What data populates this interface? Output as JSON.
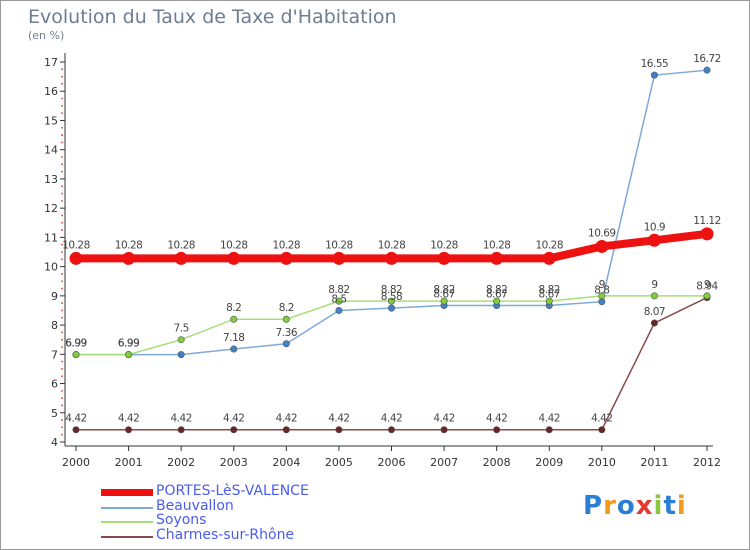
{
  "header": {
    "title": "Evolution du Taux de Taxe d'Habitation",
    "subtitle": "(en %)"
  },
  "logo": {
    "text": "Proxiti",
    "colors": [
      "#2a7fd4",
      "#f29a1a",
      "#2a7fd4",
      "#e23b2e",
      "#8cc63f",
      "#2a7fd4",
      "#f29a1a"
    ]
  },
  "chart_data": {
    "type": "line",
    "x": [
      2000,
      2001,
      2002,
      2003,
      2004,
      2005,
      2006,
      2007,
      2008,
      2009,
      2010,
      2011,
      2012
    ],
    "ylim": [
      4,
      17
    ],
    "yticks": [
      4,
      5,
      6,
      7,
      8,
      9,
      10,
      11,
      12,
      13,
      14,
      15,
      16,
      17
    ],
    "grid": false,
    "legend_position": "bottom-left",
    "series": [
      {
        "name": "PORTES-LèS-VALENCE",
        "color": "#ee1111",
        "emphasis": true,
        "values": [
          10.28,
          10.28,
          10.28,
          10.28,
          10.28,
          10.28,
          10.28,
          10.28,
          10.28,
          10.28,
          10.69,
          10.9,
          11.12
        ],
        "labels": [
          "10.28",
          "10.28",
          "10.28",
          "10.28",
          "10.28",
          "10.28",
          "10.28",
          "10.28",
          "10.28",
          "10.28",
          "10.69",
          "10.9",
          "11.12"
        ]
      },
      {
        "name": "Beauvallon",
        "color": "#7fa9d6",
        "marker": "#3f82c8",
        "values": [
          6.99,
          6.99,
          6.99,
          7.18,
          7.36,
          8.5,
          8.58,
          8.67,
          8.67,
          8.67,
          8.8,
          16.55,
          16.72
        ],
        "labels": [
          "6.99",
          "6.99",
          "",
          "7.18",
          "7.36",
          "8.5",
          "8.58",
          "8.67",
          "8.67",
          "8.67",
          "8.8",
          "16.55",
          "16.72"
        ]
      },
      {
        "name": "Soyons",
        "color": "#a6df7a",
        "marker": "#7fcf3c",
        "values": [
          6.99,
          6.99,
          7.5,
          8.2,
          8.2,
          8.82,
          8.82,
          8.82,
          8.82,
          8.82,
          9,
          9,
          9
        ],
        "labels": [
          "6.99",
          "6.99",
          "7.5",
          "8.2",
          "8.2",
          "8.82",
          "8.82",
          "8.82",
          "8.82",
          "8.82",
          "9",
          "9",
          "9"
        ]
      },
      {
        "name": "Charmes-sur-Rhône",
        "color": "#8a4a4a",
        "marker": "#6b2525",
        "values": [
          4.42,
          4.42,
          4.42,
          4.42,
          4.42,
          4.42,
          4.42,
          4.42,
          4.42,
          4.42,
          4.42,
          8.07,
          8.94
        ],
        "labels": [
          "4.42",
          "4.42",
          "4.42",
          "4.42",
          "4.42",
          "4.42",
          "4.42",
          "4.42",
          "4.42",
          "4.42",
          "4.42",
          "8.07",
          "8.94"
        ]
      }
    ]
  }
}
